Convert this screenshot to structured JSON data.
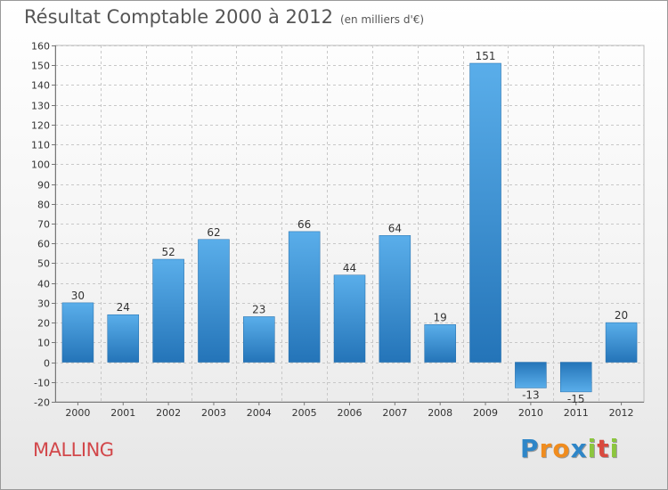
{
  "chart_data": {
    "type": "bar",
    "title": "Résultat Comptable 2000 à 2012",
    "subtitle": "(en milliers d'€)",
    "categories": [
      "2000",
      "2001",
      "2002",
      "2003",
      "2004",
      "2005",
      "2006",
      "2007",
      "2008",
      "2009",
      "2010",
      "2011",
      "2012"
    ],
    "values": [
      30,
      24,
      52,
      62,
      23,
      66,
      44,
      64,
      19,
      151,
      -13,
      -15,
      20
    ],
    "ylim": [
      -20,
      160
    ],
    "yticks": [
      -20,
      -10,
      0,
      10,
      20,
      30,
      40,
      50,
      60,
      70,
      80,
      90,
      100,
      110,
      120,
      130,
      140,
      150,
      160
    ],
    "grid": true,
    "xlabel": "",
    "ylabel": "",
    "bar_color": "#3b8fd4"
  },
  "footer": {
    "commune": "MALLING",
    "logo_letters": [
      {
        "ch": "P",
        "color": "#2e86c8"
      },
      {
        "ch": "r",
        "color": "#f08c1e"
      },
      {
        "ch": "o",
        "color": "#f08c1e"
      },
      {
        "ch": "x",
        "color": "#2e86c8"
      },
      {
        "ch": "i",
        "color": "#8cc63e"
      },
      {
        "ch": "t",
        "color": "#d94a3e"
      },
      {
        "ch": "i",
        "color": "#8cc63e"
      }
    ]
  }
}
